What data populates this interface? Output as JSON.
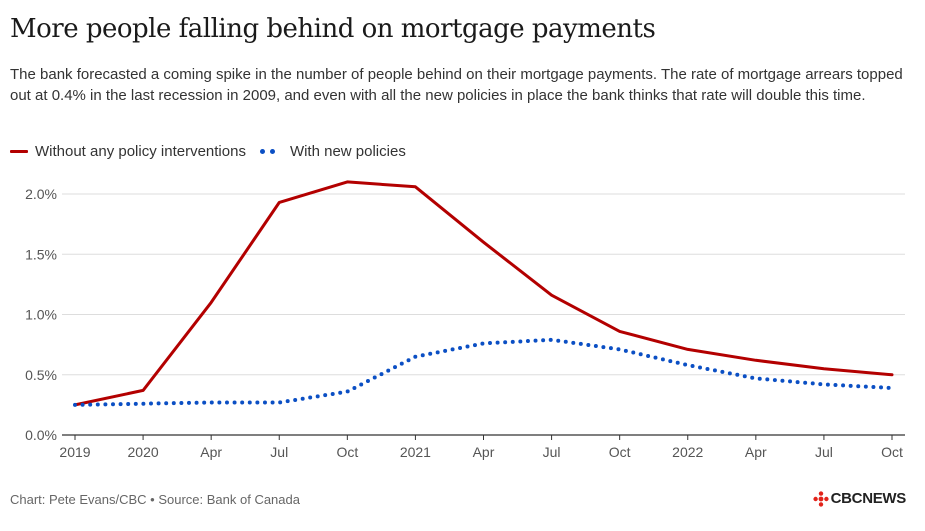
{
  "title": "More people falling behind on mortgage payments",
  "subtitle": "The bank forecasted a coming spike in the number of people behind on their mortgage payments. The rate of mortgage arrears topped out at 0.4% in the last recession in 2009, and even with all the new policies in place the bank thinks that rate will double this time.",
  "footer": "Chart: Pete Evans/CBC • Source: Bank of Canada",
  "logo_text": "CBCNEWS",
  "colors": {
    "series_a": "#b30000",
    "series_b": "#0b4fc4",
    "grid": "#dddddd",
    "axis": "#333333",
    "logo": "#e2231a"
  },
  "chart_data": {
    "type": "line",
    "title": "More people falling behind on mortgage payments",
    "xlabel": "",
    "ylabel": "",
    "x": [
      "2019",
      "2020",
      "Apr",
      "Jul",
      "Oct",
      "2021",
      "Apr",
      "Jul",
      "Oct",
      "2022",
      "Apr",
      "Jul",
      "Oct"
    ],
    "ylim": [
      0,
      2.0
    ],
    "yticks": [
      0,
      0.5,
      1.0,
      1.5,
      2.0
    ],
    "ytick_labels": [
      "0.0%",
      "0.5%",
      "1.0%",
      "1.5%",
      "2.0%"
    ],
    "grid": true,
    "legend_position": "top-left",
    "series": [
      {
        "name": "Without any policy interventions",
        "style": "solid",
        "values": [
          0.25,
          0.37,
          1.1,
          1.93,
          2.1,
          2.06,
          1.6,
          1.16,
          0.86,
          0.71,
          0.62,
          0.55,
          0.5
        ]
      },
      {
        "name": "With new policies",
        "style": "dotted",
        "values": [
          0.25,
          0.26,
          0.27,
          0.27,
          0.36,
          0.65,
          0.76,
          0.79,
          0.71,
          0.58,
          0.47,
          0.42,
          0.39
        ]
      }
    ]
  }
}
